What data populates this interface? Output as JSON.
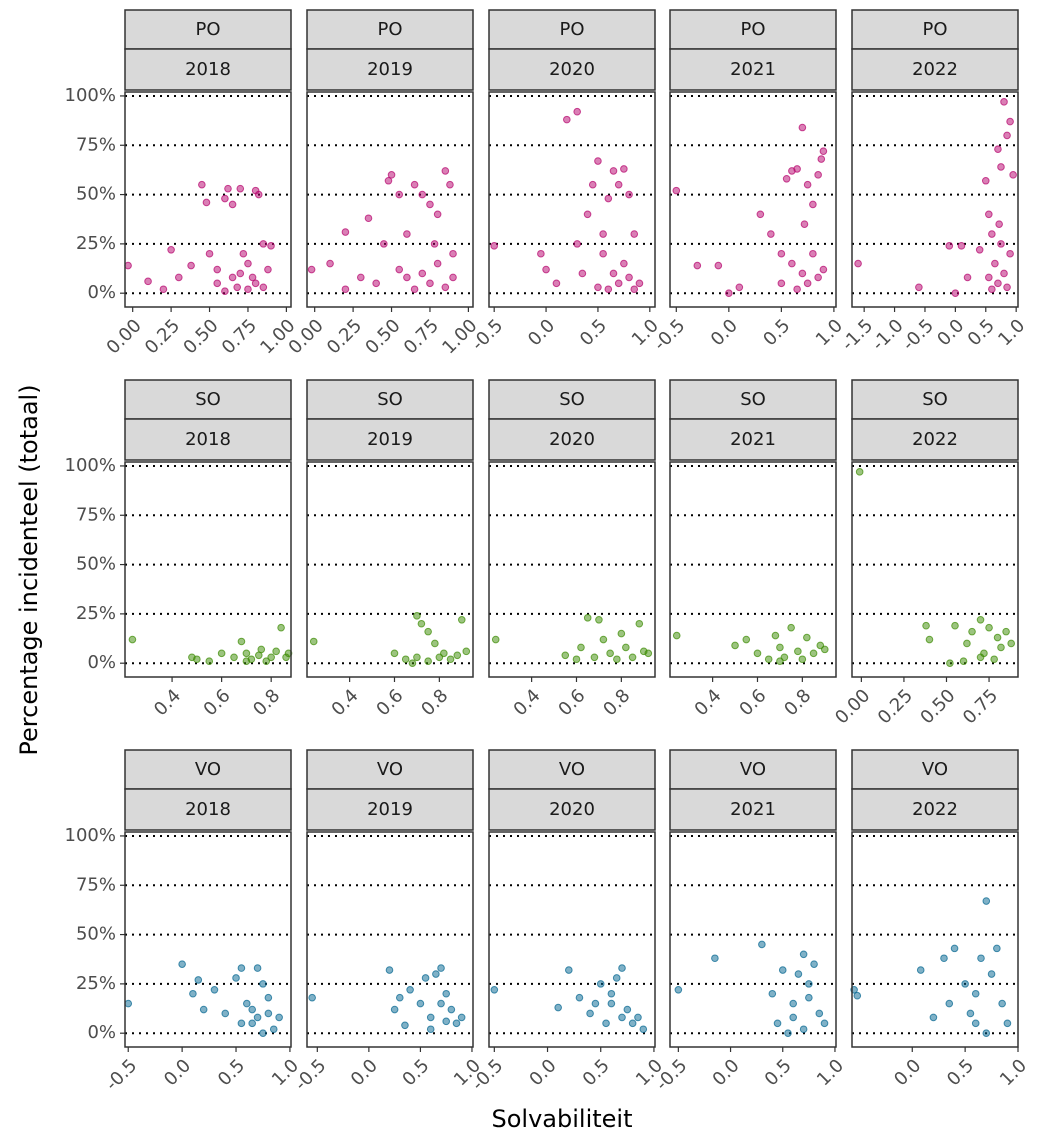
{
  "x_axis_label": "Solvabiliteit",
  "y_axis_label": "Percentage incidenteel (totaal)",
  "chart_data": [
    {
      "type": "scatter",
      "facet": "PO",
      "color": "#b5006b",
      "ylim": [
        -7,
        102
      ],
      "yticks": [
        {
          "value": 0,
          "label": "0%"
        },
        {
          "value": 25,
          "label": "25%"
        },
        {
          "value": 50,
          "label": "50%"
        },
        {
          "value": 75,
          "label": "75%"
        },
        {
          "value": 100,
          "label": "100%"
        }
      ],
      "panels": [
        {
          "year": "2018",
          "xlim": [
            -0.05,
            1.03
          ],
          "xticks": [
            {
              "value": 0,
              "label": "0.00"
            },
            0.25,
            {
              "value": 0.5,
              "label": "0.50"
            },
            0.75,
            {
              "value": 1,
              "label": "1.00"
            }
          ],
          "x": [
            -0.03,
            0.1,
            0.2,
            0.25,
            0.3,
            0.38,
            0.45,
            0.48,
            0.5,
            0.55,
            0.6,
            0.62,
            0.65,
            0.7,
            0.75,
            0.8,
            0.82,
            0.85,
            0.9,
            0.7,
            0.75,
            0.65,
            0.8,
            0.6,
            0.85,
            0.72,
            0.55,
            0.78,
            0.88,
            0.68
          ],
          "y": [
            14,
            6,
            2,
            22,
            8,
            14,
            55,
            46,
            20,
            5,
            48,
            53,
            45,
            53,
            2,
            52,
            50,
            25,
            24,
            10,
            15,
            8,
            5,
            1,
            3,
            20,
            12,
            8,
            12,
            3
          ]
        },
        {
          "year": "2019",
          "xlim": [
            -0.05,
            1.03
          ],
          "xticks": [
            {
              "value": 0,
              "label": "0.00"
            },
            0.25,
            {
              "value": 0.5,
              "label": "0.50"
            },
            0.75,
            {
              "value": 1,
              "label": "1.00"
            }
          ],
          "x": [
            -0.02,
            0.1,
            0.2,
            0.2,
            0.3,
            0.35,
            0.45,
            0.48,
            0.5,
            0.55,
            0.6,
            0.65,
            0.7,
            0.75,
            0.8,
            0.85,
            0.88,
            0.9,
            0.7,
            0.75,
            0.6,
            0.8,
            0.65,
            0.85,
            0.55,
            0.78,
            0.4,
            0.9
          ],
          "y": [
            12,
            15,
            2,
            31,
            8,
            38,
            25,
            57,
            60,
            50,
            30,
            55,
            50,
            45,
            40,
            62,
            55,
            20,
            10,
            5,
            8,
            15,
            2,
            3,
            12,
            25,
            5,
            8
          ]
        },
        {
          "year": "2020",
          "xlim": [
            -0.55,
            1.05
          ],
          "xticks": [
            -0.5,
            {
              "value": 0,
              "label": "0.0"
            },
            0.5,
            {
              "value": 1,
              "label": "1.0"
            }
          ],
          "x": [
            -0.5,
            -0.05,
            0.0,
            0.1,
            0.2,
            0.3,
            0.3,
            0.35,
            0.4,
            0.45,
            0.5,
            0.55,
            0.6,
            0.65,
            0.7,
            0.75,
            0.8,
            0.85,
            0.65,
            0.7,
            0.6,
            0.8,
            0.75,
            0.5,
            0.85,
            0.55,
            0.9
          ],
          "y": [
            24,
            20,
            12,
            5,
            88,
            92,
            25,
            10,
            40,
            55,
            67,
            30,
            48,
            62,
            55,
            63,
            50,
            30,
            10,
            5,
            2,
            8,
            15,
            3,
            2,
            20,
            5
          ]
        },
        {
          "year": "2021",
          "xlim": [
            -0.56,
            1.02
          ],
          "xticks": [
            -0.5,
            {
              "value": 0,
              "label": "0.0"
            },
            0.5,
            {
              "value": 1,
              "label": "1.0"
            }
          ],
          "x": [
            -0.5,
            -0.3,
            -0.1,
            0.0,
            0.1,
            0.3,
            0.4,
            0.5,
            0.55,
            0.6,
            0.65,
            0.7,
            0.75,
            0.8,
            0.85,
            0.9,
            0.88,
            0.7,
            0.75,
            0.6,
            0.8,
            0.65,
            0.85,
            0.72,
            0.5,
            0.9
          ],
          "y": [
            52,
            14,
            14,
            0,
            3,
            40,
            30,
            20,
            58,
            62,
            63,
            84,
            55,
            45,
            60,
            72,
            68,
            10,
            5,
            15,
            20,
            2,
            8,
            35,
            5,
            12
          ]
        },
        {
          "year": "2022",
          "xlim": [
            -1.7,
            1.03
          ],
          "xticks": [
            -1.5,
            {
              "value": -1,
              "label": "-1.0"
            },
            -0.5,
            {
              "value": 0,
              "label": "0.0"
            },
            0.5,
            {
              "value": 1,
              "label": "1.0"
            }
          ],
          "x": [
            -1.6,
            -0.6,
            -0.1,
            0.0,
            0.1,
            0.2,
            0.4,
            0.5,
            0.55,
            0.6,
            0.7,
            0.75,
            0.8,
            0.85,
            0.9,
            0.95,
            0.65,
            0.7,
            0.75,
            0.8,
            0.6,
            0.85,
            0.9,
            0.72,
            0.55
          ],
          "y": [
            15,
            3,
            24,
            0,
            24,
            8,
            22,
            57,
            40,
            30,
            73,
            64,
            97,
            80,
            87,
            60,
            15,
            5,
            25,
            10,
            2,
            3,
            20,
            35,
            8
          ]
        }
      ]
    },
    {
      "type": "scatter",
      "facet": "SO",
      "color": "#3a8a00",
      "ylim": [
        -7,
        102
      ],
      "yticks": [
        {
          "value": 0,
          "label": "0%"
        },
        {
          "value": 25,
          "label": "25%"
        },
        {
          "value": 50,
          "label": "50%"
        },
        {
          "value": 75,
          "label": "75%"
        },
        {
          "value": 100,
          "label": "100%"
        }
      ],
      "panels": [
        {
          "year": "2018",
          "xlim": [
            0.21,
            0.88
          ],
          "xticks": [
            0.4,
            0.6,
            0.8
          ],
          "x": [
            0.24,
            0.48,
            0.5,
            0.55,
            0.6,
            0.65,
            0.68,
            0.7,
            0.72,
            0.75,
            0.78,
            0.8,
            0.82,
            0.84,
            0.86,
            0.87,
            0.7,
            0.76
          ],
          "y": [
            12,
            3,
            2,
            1,
            5,
            3,
            11,
            5,
            2,
            4,
            1,
            3,
            6,
            18,
            3,
            5,
            1,
            7
          ]
        },
        {
          "year": "2019",
          "xlim": [
            0.21,
            0.95
          ],
          "xticks": [
            0.4,
            0.6,
            0.8
          ],
          "x": [
            0.24,
            0.6,
            0.65,
            0.68,
            0.7,
            0.72,
            0.75,
            0.78,
            0.8,
            0.82,
            0.85,
            0.88,
            0.9,
            0.7,
            0.75,
            0.92
          ],
          "y": [
            11,
            5,
            2,
            0,
            24,
            20,
            16,
            10,
            3,
            5,
            2,
            4,
            22,
            3,
            1,
            6
          ]
        },
        {
          "year": "2020",
          "xlim": [
            0.21,
            0.95
          ],
          "xticks": [
            0.4,
            0.6,
            0.8
          ],
          "x": [
            0.24,
            0.55,
            0.6,
            0.62,
            0.65,
            0.7,
            0.72,
            0.75,
            0.78,
            0.8,
            0.82,
            0.85,
            0.88,
            0.9,
            0.68,
            0.92
          ],
          "y": [
            12,
            4,
            2,
            8,
            23,
            22,
            12,
            5,
            2,
            15,
            8,
            3,
            20,
            6,
            3,
            5
          ]
        },
        {
          "year": "2021",
          "xlim": [
            0.21,
            0.95
          ],
          "xticks": [
            0.4,
            0.6,
            0.8
          ],
          "x": [
            0.24,
            0.5,
            0.55,
            0.6,
            0.65,
            0.68,
            0.7,
            0.72,
            0.75,
            0.78,
            0.8,
            0.82,
            0.85,
            0.88,
            0.9,
            0.7
          ],
          "y": [
            14,
            9,
            12,
            5,
            2,
            14,
            8,
            3,
            18,
            6,
            2,
            13,
            5,
            9,
            7,
            1
          ]
        },
        {
          "year": "2022",
          "xlim": [
            -0.055,
            0.92
          ],
          "xticks": [
            {
              "value": 0,
              "label": "0.00"
            },
            0.25,
            {
              "value": 0.5,
              "label": "0.50"
            },
            0.75
          ],
          "x": [
            -0.01,
            0.38,
            0.4,
            0.52,
            0.55,
            0.6,
            0.62,
            0.65,
            0.7,
            0.72,
            0.75,
            0.78,
            0.8,
            0.82,
            0.85,
            0.88,
            0.7
          ],
          "y": [
            97,
            19,
            12,
            0,
            19,
            1,
            10,
            16,
            22,
            5,
            18,
            2,
            13,
            8,
            16,
            10,
            3
          ]
        }
      ]
    },
    {
      "type": "scatter",
      "facet": "VO",
      "color": "#00648f",
      "ylim": [
        -7,
        102
      ],
      "yticks": [
        {
          "value": 0,
          "label": "0%"
        },
        {
          "value": 25,
          "label": "25%"
        },
        {
          "value": 50,
          "label": "50%"
        },
        {
          "value": 75,
          "label": "75%"
        },
        {
          "value": 100,
          "label": "100%"
        }
      ],
      "panels": [
        {
          "year": "2018",
          "xlim": [
            -0.53,
            1.01
          ],
          "xticks": [
            -0.5,
            {
              "value": 0,
              "label": "0.0"
            },
            0.5,
            {
              "value": 1,
              "label": "1.0"
            }
          ],
          "x": [
            -0.5,
            0.0,
            0.1,
            0.15,
            0.2,
            0.3,
            0.4,
            0.5,
            0.55,
            0.6,
            0.65,
            0.7,
            0.75,
            0.8,
            0.85,
            0.9,
            0.65,
            0.75,
            0.55,
            0.8,
            0.7
          ],
          "y": [
            15,
            35,
            20,
            27,
            12,
            22,
            10,
            28,
            33,
            15,
            5,
            33,
            25,
            10,
            2,
            8,
            12,
            0,
            5,
            18,
            8
          ]
        },
        {
          "year": "2019",
          "xlim": [
            -0.6,
            1.01
          ],
          "xticks": [
            -0.5,
            {
              "value": 0,
              "label": "0.0"
            },
            0.5,
            {
              "value": 1,
              "label": "1.0"
            }
          ],
          "x": [
            -0.55,
            0.2,
            0.25,
            0.3,
            0.35,
            0.4,
            0.5,
            0.55,
            0.6,
            0.65,
            0.7,
            0.75,
            0.8,
            0.85,
            0.9,
            0.6,
            0.7,
            0.75
          ],
          "y": [
            18,
            32,
            12,
            18,
            4,
            22,
            15,
            28,
            8,
            30,
            33,
            20,
            12,
            5,
            8,
            2,
            15,
            6
          ]
        },
        {
          "year": "2020",
          "xlim": [
            -0.55,
            1.01
          ],
          "xticks": [
            -0.5,
            {
              "value": 0,
              "label": "0.0"
            },
            0.5,
            {
              "value": 1,
              "label": "1.0"
            }
          ],
          "x": [
            -0.5,
            0.1,
            0.2,
            0.3,
            0.4,
            0.5,
            0.55,
            0.6,
            0.65,
            0.7,
            0.75,
            0.8,
            0.85,
            0.9,
            0.6,
            0.7,
            0.45
          ],
          "y": [
            22,
            13,
            32,
            18,
            10,
            25,
            5,
            15,
            28,
            33,
            12,
            5,
            8,
            2,
            20,
            8,
            15
          ]
        },
        {
          "year": "2021",
          "xlim": [
            -0.58,
            1.01
          ],
          "xticks": [
            -0.5,
            {
              "value": 0,
              "label": "0.0"
            },
            0.5,
            {
              "value": 1,
              "label": "1.0"
            }
          ],
          "x": [
            -0.5,
            -0.15,
            0.3,
            0.4,
            0.45,
            0.5,
            0.55,
            0.6,
            0.65,
            0.7,
            0.75,
            0.8,
            0.85,
            0.9,
            0.6,
            0.7,
            0.75
          ],
          "y": [
            22,
            38,
            45,
            20,
            5,
            32,
            0,
            15,
            30,
            40,
            25,
            35,
            10,
            5,
            8,
            2,
            18
          ]
        },
        {
          "year": "2022",
          "xlim": [
            -0.57,
            1.0
          ],
          "xticks": [
            {
              "value": 0,
              "label": "0.0"
            },
            0.5,
            {
              "value": 1,
              "label": "1.0"
            }
          ],
          "x": [
            -0.55,
            -0.52,
            0.08,
            0.2,
            0.3,
            0.35,
            0.4,
            0.5,
            0.55,
            0.6,
            0.65,
            0.7,
            0.75,
            0.8,
            0.85,
            0.9,
            0.7,
            0.6
          ],
          "y": [
            22,
            19,
            32,
            8,
            38,
            15,
            43,
            25,
            10,
            20,
            38,
            67,
            30,
            43,
            15,
            5,
            0,
            5
          ]
        }
      ]
    }
  ]
}
